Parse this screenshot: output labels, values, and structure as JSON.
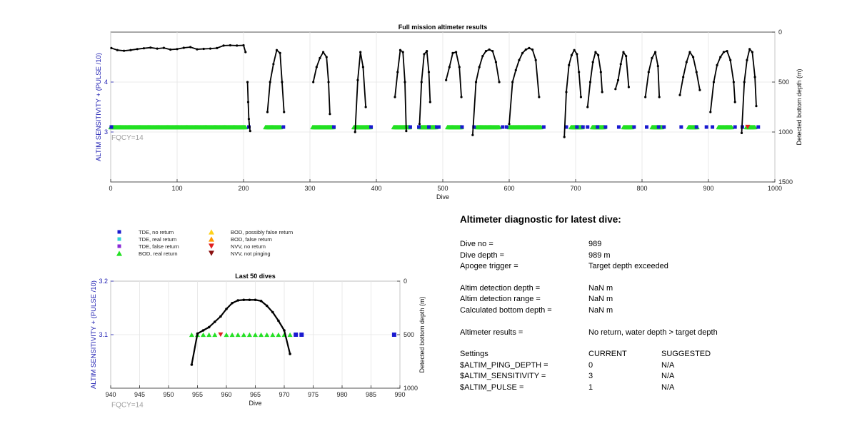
{
  "colors": {
    "tde_no_return": "#1a1ad0",
    "tde_real_return": "#33d4d4",
    "tde_false_return": "#8a2ad6",
    "bod_real_return": "#22e022",
    "bod_possibly_false": "#ffd21a",
    "bod_false_return": "#ff9900",
    "nvv_no_return": "#e02020",
    "nvv_not_pinging": "#8a1010",
    "depth_line": "#000000"
  },
  "legend": [
    {
      "label": "TDE, no return",
      "marker": "square",
      "color_key": "tde_no_return"
    },
    {
      "label": "TDE, real return",
      "marker": "square",
      "color_key": "tde_real_return"
    },
    {
      "label": "TDE, false return",
      "marker": "square",
      "color_key": "tde_false_return"
    },
    {
      "label": "BOD, real return",
      "marker": "triangle-up",
      "color_key": "bod_real_return"
    },
    {
      "label": "BOD, possibly false return",
      "marker": "triangle-up",
      "color_key": "bod_possibly_false"
    },
    {
      "label": "BOD, false return",
      "marker": "triangle-up",
      "color_key": "bod_false_return"
    },
    {
      "label": "NVV, no return",
      "marker": "triangle-down",
      "color_key": "nvv_no_return"
    },
    {
      "label": "NVV, not pinging",
      "marker": "triangle-down",
      "color_key": "nvv_not_pinging"
    }
  ],
  "chart_data": [
    {
      "type": "scatter",
      "title": "Full mission altimeter results",
      "xlabel": "Dive",
      "ylabel": "ALTIM SENSITIVITY + (PULSE /10)",
      "y2label": "Detected bottom depth (m)",
      "xlim": [
        0,
        1000
      ],
      "ylim": [
        2,
        5
      ],
      "y2lim": [
        0,
        1500
      ],
      "y2_reversed": true,
      "xticks": [
        0,
        100,
        200,
        300,
        400,
        500,
        600,
        700,
        800,
        900,
        1000
      ],
      "yticks": [
        3,
        4
      ],
      "y2ticks": [
        0,
        500,
        1000,
        1500
      ],
      "annotation": "FQCY=14",
      "grid": true,
      "markers_y": 3.1,
      "bod_real_return_ranges": [
        [
          0,
          203
        ],
        [
          233,
          256
        ],
        [
          304,
          335
        ],
        [
          366,
          391
        ],
        [
          426,
          450
        ],
        [
          465,
          490
        ],
        [
          507,
          528
        ],
        [
          551,
          585
        ],
        [
          600,
          648
        ],
        [
          693,
          710
        ],
        [
          725,
          743
        ],
        [
          772,
          785
        ],
        [
          815,
          830
        ],
        [
          870,
          883
        ],
        [
          915,
          935
        ],
        [
          957,
          970
        ]
      ],
      "tde_no_return_dives": [
        1,
        208,
        260,
        336,
        392,
        451,
        464,
        479,
        491,
        494,
        529,
        547,
        590,
        596,
        652,
        686,
        702,
        711,
        718,
        733,
        745,
        765,
        788,
        807,
        825,
        833,
        859,
        882,
        897,
        906,
        940,
        951,
        975
      ],
      "nvv_no_return_dives": [
        959
      ],
      "depth_series": [
        {
          "name": "dives 1-203",
          "x": [
            1,
            10,
            20,
            30,
            40,
            50,
            60,
            70,
            80,
            90,
            100,
            110,
            120,
            130,
            140,
            150,
            160,
            170,
            180,
            190,
            200,
            203
          ],
          "y": [
            160,
            180,
            187,
            180,
            170,
            162,
            155,
            165,
            158,
            175,
            170,
            157,
            150,
            172,
            168,
            165,
            160,
            135,
            132,
            135,
            132,
            200
          ]
        },
        {
          "name": "dives 206-210",
          "x": [
            206,
            207,
            208,
            209,
            210
          ],
          "y": [
            500,
            700,
            870,
            950,
            990
          ]
        },
        {
          "name": "dives 236-261",
          "x": [
            236,
            240,
            245,
            250,
            255,
            258,
            261
          ],
          "y": [
            800,
            500,
            320,
            180,
            210,
            500,
            800
          ]
        },
        {
          "name": "dives 305-330",
          "x": [
            305,
            310,
            315,
            320,
            325,
            328,
            330
          ],
          "y": [
            500,
            350,
            260,
            200,
            250,
            500,
            820
          ]
        },
        {
          "name": "dives 368-384",
          "x": [
            368,
            372,
            376,
            380,
            384
          ],
          "y": [
            1000,
            480,
            200,
            350,
            750
          ]
        },
        {
          "name": "dives 428-445",
          "x": [
            428,
            432,
            436,
            440,
            443,
            445
          ],
          "y": [
            650,
            400,
            180,
            200,
            500,
            990
          ]
        },
        {
          "name": "dives 465-481",
          "x": [
            465,
            468,
            472,
            476,
            479,
            481
          ],
          "y": [
            920,
            500,
            220,
            190,
            400,
            700
          ]
        },
        {
          "name": "dives 505-528",
          "x": [
            505,
            510,
            515,
            520,
            525,
            528
          ],
          "y": [
            480,
            350,
            210,
            200,
            350,
            650
          ]
        },
        {
          "name": "dives 545-585",
          "x": [
            545,
            550,
            555,
            560,
            565,
            570,
            575,
            580,
            585
          ],
          "y": [
            1030,
            500,
            350,
            240,
            190,
            175,
            190,
            300,
            500
          ]
        },
        {
          "name": "dives 600-645",
          "x": [
            600,
            605,
            610,
            615,
            620,
            625,
            630,
            635,
            640,
            645
          ],
          "y": [
            920,
            500,
            380,
            280,
            210,
            175,
            160,
            175,
            280,
            650
          ]
        },
        {
          "name": "dives 683-708",
          "x": [
            683,
            686,
            690,
            694,
            698,
            702,
            705,
            708
          ],
          "y": [
            1050,
            600,
            330,
            230,
            180,
            220,
            400,
            650
          ]
        },
        {
          "name": "dives 718-740",
          "x": [
            718,
            722,
            726,
            730,
            734,
            738,
            740
          ],
          "y": [
            750,
            500,
            300,
            200,
            230,
            400,
            600
          ]
        },
        {
          "name": "dives 760-780",
          "x": [
            760,
            764,
            768,
            772,
            776,
            780
          ],
          "y": [
            570,
            480,
            320,
            200,
            240,
            550
          ]
        },
        {
          "name": "dives 805-826",
          "x": [
            805,
            810,
            815,
            820,
            824,
            826
          ],
          "y": [
            650,
            400,
            260,
            200,
            340,
            650
          ]
        },
        {
          "name": "dives 857-887",
          "x": [
            857,
            862,
            867,
            872,
            877,
            882,
            887
          ],
          "y": [
            630,
            450,
            300,
            200,
            250,
            400,
            580
          ]
        },
        {
          "name": "dives 903-940",
          "x": [
            903,
            908,
            913,
            918,
            923,
            928,
            933,
            938,
            940
          ],
          "y": [
            800,
            500,
            330,
            250,
            200,
            190,
            280,
            500,
            700
          ]
        },
        {
          "name": "dives 950-972",
          "x": [
            950,
            954,
            958,
            962,
            966,
            970,
            972
          ],
          "y": [
            1010,
            500,
            280,
            170,
            200,
            450,
            740
          ]
        }
      ]
    },
    {
      "type": "scatter",
      "title": "Last 50 dives",
      "xlabel": "Dive",
      "ylabel": "ALTIM SENSITIVITY + (PULSE /10)",
      "y2label": "Detected bottom depth (m)",
      "xlim": [
        940,
        990
      ],
      "ylim": [
        3,
        3.2
      ],
      "y2lim": [
        0,
        1000
      ],
      "y2_reversed": true,
      "xticks": [
        940,
        945,
        950,
        955,
        960,
        965,
        970,
        975,
        980,
        985,
        990
      ],
      "yticks": [
        3.1,
        3.2
      ],
      "y2ticks": [
        0,
        500,
        1000
      ],
      "annotation": "FQCY=14",
      "grid": true,
      "markers_y": 3.1,
      "bod_real_return_dives": [
        954,
        955,
        956,
        957,
        958,
        960,
        961,
        962,
        963,
        964,
        965,
        966,
        967,
        968,
        969,
        970,
        971
      ],
      "nvv_no_return_dives": [
        959
      ],
      "tde_no_return_dives": [
        972,
        973,
        989
      ],
      "depth_series": {
        "x": [
          954,
          955,
          956,
          957,
          958,
          959,
          960,
          961,
          962,
          963,
          964,
          965,
          966,
          967,
          968,
          969,
          970,
          971
        ],
        "y": [
          780,
          490,
          460,
          430,
          380,
          330,
          260,
          205,
          180,
          175,
          175,
          175,
          185,
          230,
          290,
          370,
          460,
          680
        ]
      }
    }
  ],
  "diagnostic": {
    "title": "Altimeter diagnostic for latest dive:",
    "group1": [
      {
        "label": "Dive no =",
        "value": "989"
      },
      {
        "label": "Dive depth =",
        "value": "989 m"
      },
      {
        "label": "Apogee trigger =",
        "value": "Target depth exceeded"
      }
    ],
    "group2": [
      {
        "label": "Altim detection depth =",
        "value": "NaN m"
      },
      {
        "label": "Altim detection range =",
        "value": "NaN m"
      },
      {
        "label": "Calculated bottom depth =",
        "value": "NaN m"
      }
    ],
    "group3": [
      {
        "label": "Altimeter results =",
        "value": "No return, water depth > target depth"
      }
    ],
    "settings_header": {
      "label": "Settings",
      "current": "CURRENT",
      "suggested": "SUGGESTED"
    },
    "settings": [
      {
        "label": "$ALTIM_PING_DEPTH =",
        "current": "0",
        "suggested": "N/A"
      },
      {
        "label": "$ALTIM_SENSITIVITY =",
        "current": "3",
        "suggested": "N/A"
      },
      {
        "label": "$ALTIM_PULSE =",
        "current": "1",
        "suggested": "N/A"
      }
    ]
  }
}
